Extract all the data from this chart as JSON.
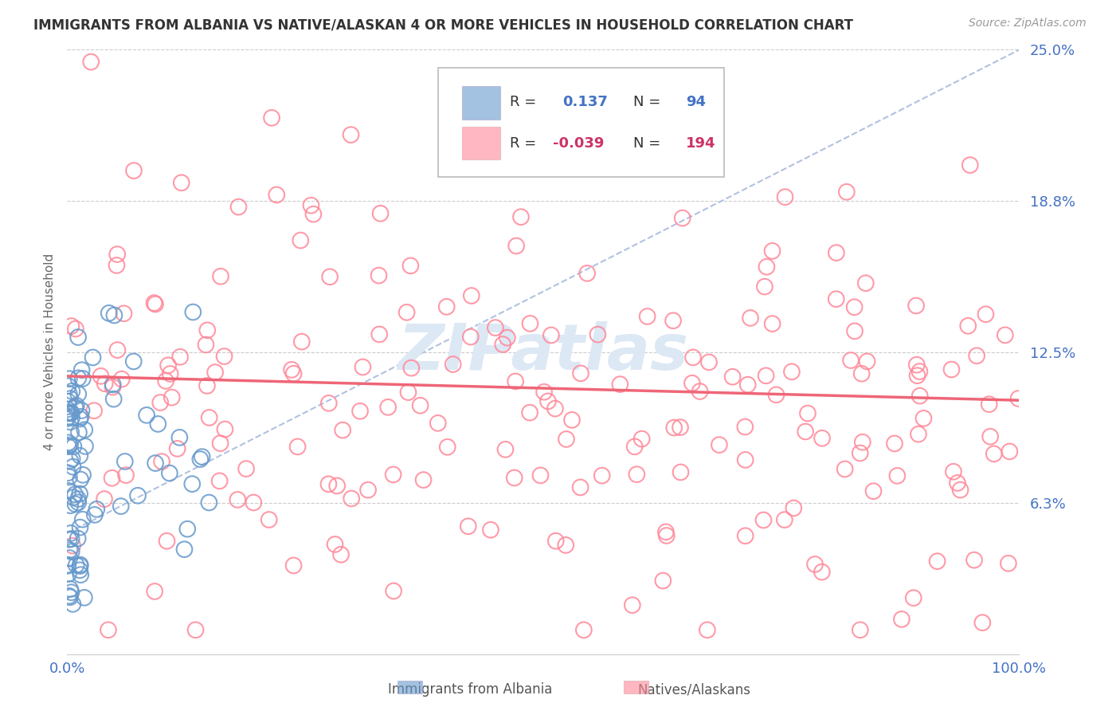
{
  "title": "IMMIGRANTS FROM ALBANIA VS NATIVE/ALASKAN 4 OR MORE VEHICLES IN HOUSEHOLD CORRELATION CHART",
  "source_text": "Source: ZipAtlas.com",
  "ylabel": "4 or more Vehicles in Household",
  "xlim": [
    0,
    1.0
  ],
  "ylim": [
    0,
    0.25
  ],
  "ytick_positions": [
    0.0,
    0.0625,
    0.125,
    0.1875,
    0.25
  ],
  "ytick_labels": [
    "",
    "6.3%",
    "12.5%",
    "18.8%",
    "25.0%"
  ],
  "legend1_r": "0.137",
  "legend1_n": "94",
  "legend2_r": "-0.039",
  "legend2_n": "194",
  "color_blue": "#6699cc",
  "color_pink": "#ff8899",
  "color_blue_text": "#4472c4",
  "color_pink_text": "#cc3366",
  "trendline_blue_color": "#aabbdd",
  "trendline_pink_color": "#ee6677",
  "watermark_color": "#dde8f5",
  "grid_color": "#cccccc",
  "background_color": "#ffffff"
}
